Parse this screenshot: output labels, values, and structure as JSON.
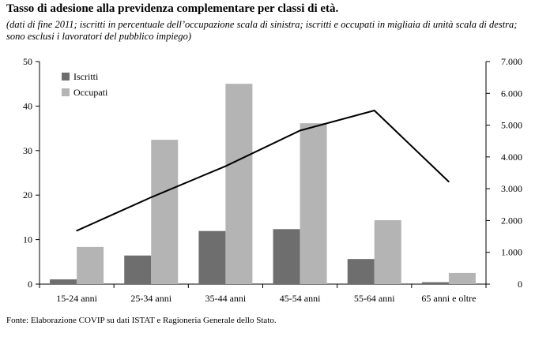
{
  "title": "Tasso di adesione alla previdenza complementare per classi di età.",
  "subtitle": "(dati di fine 2011; iscritti in percentuale dell’occupazione scala di sinistra; iscritti e occupati in migliaia di unità scala di destra; sono esclusi i lavoratori del pubblico impiego)",
  "source": "Fonte: Elaborazione COVIP su dati ISTAT e Ragioneria Generale dello Stato.",
  "chart_data": {
    "type": "bar",
    "categories": [
      "15-24 anni",
      "25-34 anni",
      "35-44 anni",
      "45-54 anni",
      "55-64 anni",
      "65 anni e oltre"
    ],
    "series": [
      {
        "name": "Iscritti",
        "axis": "right",
        "color": "#6e6e6e",
        "values": [
          150,
          900,
          1670,
          1730,
          790,
          60
        ]
      },
      {
        "name": "Occupati",
        "axis": "right",
        "color": "#b4b4b4",
        "values": [
          1170,
          4540,
          6300,
          5060,
          2010,
          350
        ]
      },
      {
        "axis": "left",
        "type": "line",
        "color": "#000000",
        "values": [
          12,
          19.5,
          26.5,
          34.5,
          39,
          23
        ]
      }
    ],
    "y_left": {
      "min": 0,
      "max": 50,
      "ticks": [
        "0",
        "10",
        "20",
        "30",
        "40",
        "50"
      ]
    },
    "y_right": {
      "min": 0,
      "max": 7000,
      "ticks": [
        "0",
        "1.000",
        "2.000",
        "3.000",
        "4.000",
        "5.000",
        "6.000",
        "7.000"
      ]
    },
    "legend": {
      "position": "top-left",
      "entries": [
        "Iscritti",
        "Occupati"
      ]
    },
    "grid": false
  }
}
